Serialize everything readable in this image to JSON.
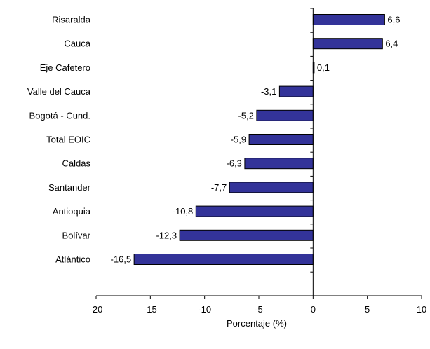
{
  "chart_data": {
    "type": "bar",
    "orientation": "horizontal",
    "categories": [
      "Risaralda",
      "Cauca",
      "Eje Cafetero",
      "Valle del Cauca",
      "Bogotá - Cund.",
      "Total EOIC",
      "Caldas",
      "Santander",
      "Antioquia",
      "Bolívar",
      "Atlántico"
    ],
    "values": [
      6.6,
      6.4,
      0.1,
      -3.1,
      -5.2,
      -5.9,
      -6.3,
      -7.7,
      -10.8,
      -12.3,
      -16.5
    ],
    "value_labels": [
      "6,6",
      "6,4",
      "0,1",
      "-3,1",
      "-5,2",
      "-5,9",
      "-6,3",
      "-7,7",
      "-10,8",
      "-12,3",
      "-16,5"
    ],
    "xlim": [
      -20,
      10
    ],
    "xticks": [
      -20,
      -15,
      -10,
      -5,
      0,
      5,
      10
    ],
    "xtick_labels": [
      "-20",
      "-15",
      "-10",
      "-5",
      "0",
      "5",
      "10"
    ],
    "xlabel": "Porcentaje (%)",
    "ylabel": "",
    "title": "",
    "bar_color": "#333399",
    "grid": false,
    "legend": "none"
  }
}
